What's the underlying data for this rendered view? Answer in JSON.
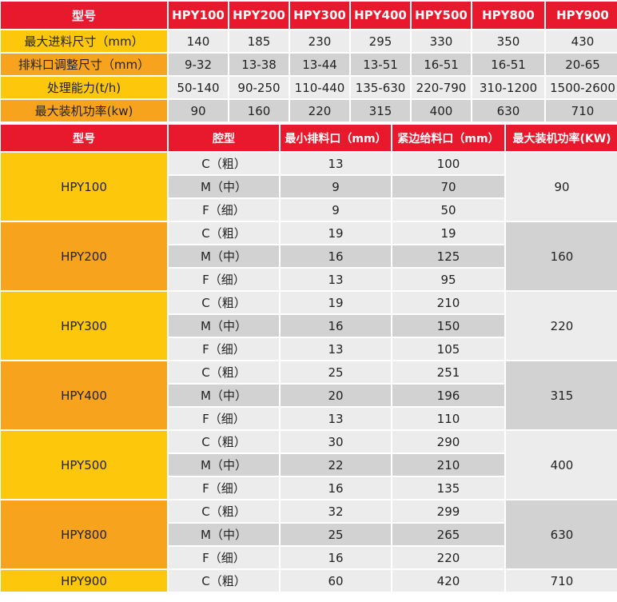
{
  "colors": {
    "header": "#e8192c",
    "yellow": "#fdc80c",
    "orange": "#f7a31e",
    "light": "#ececec",
    "dark": "#d2d2d2"
  },
  "spec_table": {
    "header_label": "型号",
    "models": [
      "HPY100",
      "HPY200",
      "HPY300",
      "HPY400",
      "HPY500",
      "HPY800",
      "HPY900"
    ],
    "rows": [
      {
        "label": "最大进料尺寸（mm）",
        "values": [
          "140",
          "185",
          "230",
          "295",
          "330",
          "350",
          "430"
        ]
      },
      {
        "label": "排料口调整尺寸（mm）",
        "values": [
          "9-32",
          "13-38",
          "13-44",
          "13-51",
          "16-51",
          "16-51",
          "20-65"
        ]
      },
      {
        "label": "处理能力(t/h)",
        "values": [
          "50-140",
          "90-250",
          "110-440",
          "135-630",
          "220-790",
          "310-1200",
          "1500-2600"
        ]
      },
      {
        "label": "最大装机功率(kw)",
        "values": [
          "90",
          "160",
          "220",
          "315",
          "400",
          "630",
          "710"
        ]
      }
    ]
  },
  "cavity_table": {
    "headers": [
      "型号",
      "腔型",
      "最小排料口（mm）",
      "紧边给料口（mm）",
      "最大装机功率(KW)"
    ],
    "groups": [
      {
        "model": "HPY100",
        "power": "90",
        "rows": [
          {
            "cavity": "C（粗）",
            "min": "13",
            "close": "100"
          },
          {
            "cavity": "M（中）",
            "min": "9",
            "close": "70"
          },
          {
            "cavity": "F（细）",
            "min": "9",
            "close": "50"
          }
        ]
      },
      {
        "model": "HPY200",
        "power": "160",
        "rows": [
          {
            "cavity": "C（粗）",
            "min": "19",
            "close": "19"
          },
          {
            "cavity": "M（中）",
            "min": "16",
            "close": "125"
          },
          {
            "cavity": "F（细）",
            "min": "13",
            "close": "95"
          }
        ]
      },
      {
        "model": "HPY300",
        "power": "220",
        "rows": [
          {
            "cavity": "C（粗）",
            "min": "19",
            "close": "210"
          },
          {
            "cavity": "M（中）",
            "min": "16",
            "close": "150"
          },
          {
            "cavity": "F（细）",
            "min": "13",
            "close": "105"
          }
        ]
      },
      {
        "model": "HPY400",
        "power": "315",
        "rows": [
          {
            "cavity": "C（粗）",
            "min": "25",
            "close": "251"
          },
          {
            "cavity": "M（中）",
            "min": "20",
            "close": "196"
          },
          {
            "cavity": "F（细）",
            "min": "13",
            "close": "110"
          }
        ]
      },
      {
        "model": "HPY500",
        "power": "400",
        "rows": [
          {
            "cavity": "C（粗）",
            "min": "30",
            "close": "290"
          },
          {
            "cavity": "M（中）",
            "min": "22",
            "close": "210"
          },
          {
            "cavity": "F（细）",
            "min": "16",
            "close": "135"
          }
        ]
      },
      {
        "model": "HPY800",
        "power": "630",
        "rows": [
          {
            "cavity": "C（粗）",
            "min": "32",
            "close": "299"
          },
          {
            "cavity": "M（中）",
            "min": "25",
            "close": "265"
          },
          {
            "cavity": "F（细）",
            "min": "16",
            "close": "220"
          }
        ]
      },
      {
        "model": "HPY900",
        "power": "710",
        "rows": [
          {
            "cavity": "C（粗）",
            "min": "60",
            "close": "420"
          }
        ]
      }
    ]
  }
}
